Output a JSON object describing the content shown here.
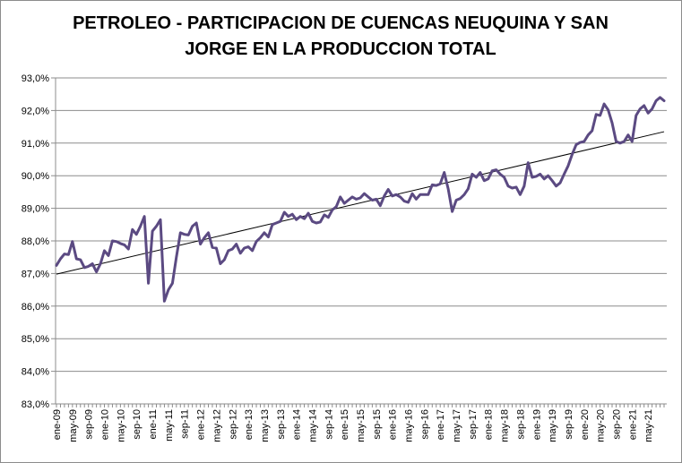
{
  "chart_data": {
    "type": "line",
    "title_line1": "PETROLEO - PARTICIPACION DE CUENCAS NEUQUINA Y SAN",
    "title_line2": "JORGE EN LA PRODUCCION TOTAL",
    "y_ticks": [
      "83,0%",
      "84,0%",
      "85,0%",
      "86,0%",
      "87,0%",
      "88,0%",
      "89,0%",
      "90,0%",
      "91,0%",
      "92,0%",
      "93,0%"
    ],
    "ylim": [
      83.0,
      93.0
    ],
    "grid": "horizontal",
    "legend": "none",
    "x_tick_labels": [
      "ene-09",
      "may-09",
      "sep-09",
      "ene-10",
      "may-10",
      "sep-10",
      "ene-11",
      "may-11",
      "sep-11",
      "ene-12",
      "may-12",
      "sep-12",
      "ene-13",
      "may-13",
      "sep-13",
      "ene-14",
      "may-14",
      "sep-14",
      "ene-15",
      "may-15",
      "sep-15",
      "ene-16",
      "may-16",
      "sep-16",
      "ene-17",
      "may-17",
      "sep-17",
      "ene-18",
      "may-18",
      "sep-18",
      "ene-19",
      "may-19",
      "sep-19",
      "ene-20",
      "may-20",
      "sep-20",
      "ene-21",
      "may-21"
    ],
    "x_start": "ene-09",
    "x_step_months": 1,
    "series": [
      {
        "color": "#5b4a82",
        "values": [
          87.25,
          87.45,
          87.6,
          87.58,
          87.98,
          87.45,
          87.42,
          87.18,
          87.22,
          87.3,
          87.05,
          87.3,
          87.7,
          87.55,
          88.0,
          87.98,
          87.92,
          87.88,
          87.75,
          88.35,
          88.2,
          88.45,
          88.75,
          86.7,
          88.3,
          88.45,
          88.65,
          86.15,
          86.5,
          86.7,
          87.5,
          88.25,
          88.2,
          88.18,
          88.45,
          88.55,
          87.9,
          88.1,
          88.25,
          87.8,
          87.78,
          87.3,
          87.42,
          87.7,
          87.75,
          87.9,
          87.62,
          87.78,
          87.82,
          87.7,
          87.98,
          88.1,
          88.25,
          88.12,
          88.5,
          88.55,
          88.6,
          88.88,
          88.75,
          88.82,
          88.65,
          88.75,
          88.68,
          88.85,
          88.6,
          88.55,
          88.58,
          88.8,
          88.72,
          88.95,
          89.05,
          89.35,
          89.15,
          89.25,
          89.35,
          89.28,
          89.32,
          89.45,
          89.35,
          89.25,
          89.28,
          89.08,
          89.38,
          89.58,
          89.38,
          89.42,
          89.35,
          89.22,
          89.18,
          89.45,
          89.28,
          89.42,
          89.42,
          89.42,
          89.72,
          89.7,
          89.75,
          90.1,
          89.6,
          88.9,
          89.25,
          89.3,
          89.42,
          89.6,
          90.05,
          89.95,
          90.1,
          89.85,
          89.9,
          90.15,
          90.18,
          90.05,
          89.95,
          89.68,
          89.62,
          89.65,
          89.42,
          89.68,
          90.4,
          89.95,
          89.98,
          90.05,
          89.9,
          90.0,
          89.85,
          89.68,
          89.78,
          90.05,
          90.3,
          90.65,
          90.95,
          91.02,
          91.05,
          91.25,
          91.38,
          91.88,
          91.85,
          92.2,
          92.02,
          91.62,
          91.05,
          91.0,
          91.05,
          91.25,
          91.05,
          91.85,
          92.05,
          92.15,
          91.92,
          92.05,
          92.3,
          92.4,
          92.3
        ]
      },
      {
        "style": "linear trendline",
        "color": "#000000",
        "values_at_ends": [
          86.98,
          91.35
        ]
      }
    ]
  }
}
